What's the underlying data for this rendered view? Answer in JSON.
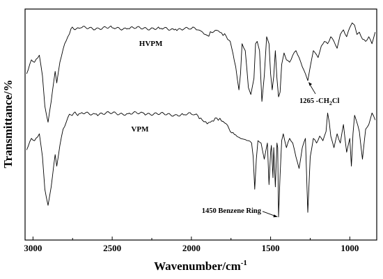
{
  "chart_data": {
    "type": "line",
    "xlabel": "Wavenumber/cm",
    "xlabel_sup": "-1",
    "ylabel": "Transmittance/%",
    "xlim": [
      3050,
      830
    ],
    "x_reversed": true,
    "ylim": [
      0,
      100
    ],
    "x_ticks": [
      3000,
      2500,
      2000,
      1500,
      1000
    ],
    "x_tick_labels": [
      "3000",
      "2500",
      "2000",
      "1500",
      "1000"
    ],
    "show_y_tick_labels": false,
    "grid": false,
    "series": [
      {
        "name": "HVPM",
        "x": [
          3040,
          3010,
          2990,
          2960,
          2940,
          2925,
          2905,
          2885,
          2860,
          2850,
          2830,
          2800,
          2780,
          2760,
          2700,
          2600,
          2500,
          2400,
          2300,
          2200,
          2100,
          2050,
          2000,
          1960,
          1940,
          1920,
          1900,
          1870,
          1840,
          1810,
          1780,
          1755,
          1720,
          1700,
          1690,
          1680,
          1660,
          1640,
          1625,
          1605,
          1595,
          1585,
          1570,
          1555,
          1540,
          1525,
          1510,
          1500,
          1490,
          1480,
          1470,
          1460,
          1450,
          1440,
          1430,
          1415,
          1400,
          1380,
          1360,
          1340,
          1320,
          1300,
          1280,
          1265,
          1250,
          1230,
          1200,
          1180,
          1160,
          1140,
          1120,
          1100,
          1080,
          1060,
          1040,
          1020,
          1000,
          985,
          970,
          955,
          940,
          920,
          900,
          880,
          860,
          840
        ],
        "y": [
          72,
          78,
          77,
          80,
          71,
          58,
          51,
          60,
          73,
          68,
          77,
          85,
          88,
          91.5,
          91.8,
          91.7,
          91.9,
          91.6,
          91.8,
          91.5,
          91.3,
          91.2,
          91.5,
          91.0,
          90.5,
          89.2,
          88.6,
          89.8,
          90.8,
          89.7,
          88.2,
          86.0,
          75,
          65,
          72,
          85,
          82,
          66,
          63,
          70,
          85,
          86,
          82,
          60,
          71,
          88,
          85,
          72,
          65,
          71,
          82,
          70,
          62,
          64,
          76,
          81,
          78,
          77,
          80,
          82,
          79,
          75,
          72,
          69,
          75,
          82,
          79,
          84,
          86,
          85,
          88,
          86,
          83,
          89,
          91,
          88,
          92,
          94,
          93,
          89,
          90,
          87,
          86,
          88,
          85,
          90
        ]
      },
      {
        "name": "VPM",
        "x": [
          3040,
          3010,
          2990,
          2960,
          2940,
          2925,
          2905,
          2885,
          2860,
          2850,
          2830,
          2810,
          2790,
          2770,
          2700,
          2600,
          2500,
          2400,
          2300,
          2200,
          2100,
          2050,
          2000,
          1960,
          1940,
          1920,
          1900,
          1870,
          1840,
          1810,
          1780,
          1755,
          1720,
          1700,
          1690,
          1680,
          1660,
          1640,
          1620,
          1610,
          1600,
          1590,
          1580,
          1560,
          1540,
          1520,
          1510,
          1500,
          1495,
          1485,
          1480,
          1470,
          1460,
          1455,
          1450,
          1440,
          1430,
          1420,
          1400,
          1380,
          1360,
          1340,
          1320,
          1300,
          1280,
          1265,
          1250,
          1230,
          1210,
          1190,
          1170,
          1150,
          1140,
          1130,
          1120,
          1100,
          1080,
          1060,
          1040,
          1020,
          1000,
          990,
          980,
          970,
          960,
          940,
          920,
          900,
          880,
          860,
          840
        ],
        "y": [
          39,
          44,
          43,
          46,
          36,
          22,
          15,
          23,
          37,
          32,
          41,
          48,
          51,
          54.5,
          54.8,
          54.6,
          54.9,
          54.7,
          54.9,
          54.5,
          54.3,
          54.2,
          54.5,
          53.9,
          52.8,
          51.2,
          50.3,
          51.6,
          52.8,
          51.5,
          50.3,
          47.0,
          45.5,
          44.5,
          44.0,
          43.8,
          43.5,
          43.0,
          42.0,
          36.0,
          22.0,
          35.0,
          43.0,
          42.0,
          35.0,
          42.0,
          24.0,
          38.0,
          41.0,
          27.0,
          40.0,
          23.0,
          42.0,
          40.0,
          10.0,
          28.0,
          43.0,
          46.0,
          40.0,
          44.0,
          42.0,
          36.0,
          31.0,
          40.0,
          44.0,
          12.0,
          36.0,
          44.0,
          42.0,
          45.0,
          43.0,
          47.0,
          55.0,
          51.0,
          45.0,
          40.0,
          46.0,
          42.0,
          50.0,
          38.0,
          44.0,
          32.0,
          46.0,
          54.0,
          52.0,
          47.0,
          35.0,
          48.0,
          50.0,
          55.0,
          52.0
        ]
      }
    ],
    "series_labels": [
      "HVPM",
      "VPM"
    ],
    "annotations": [
      {
        "id": "ch2cl",
        "prefix": "1265 -CH",
        "sub": "2",
        "suffix": "Cl",
        "x": 1265,
        "y": 69
      },
      {
        "id": "benzene",
        "text": "1450 Benzene Ring",
        "x": 1450,
        "y": 10
      }
    ]
  }
}
